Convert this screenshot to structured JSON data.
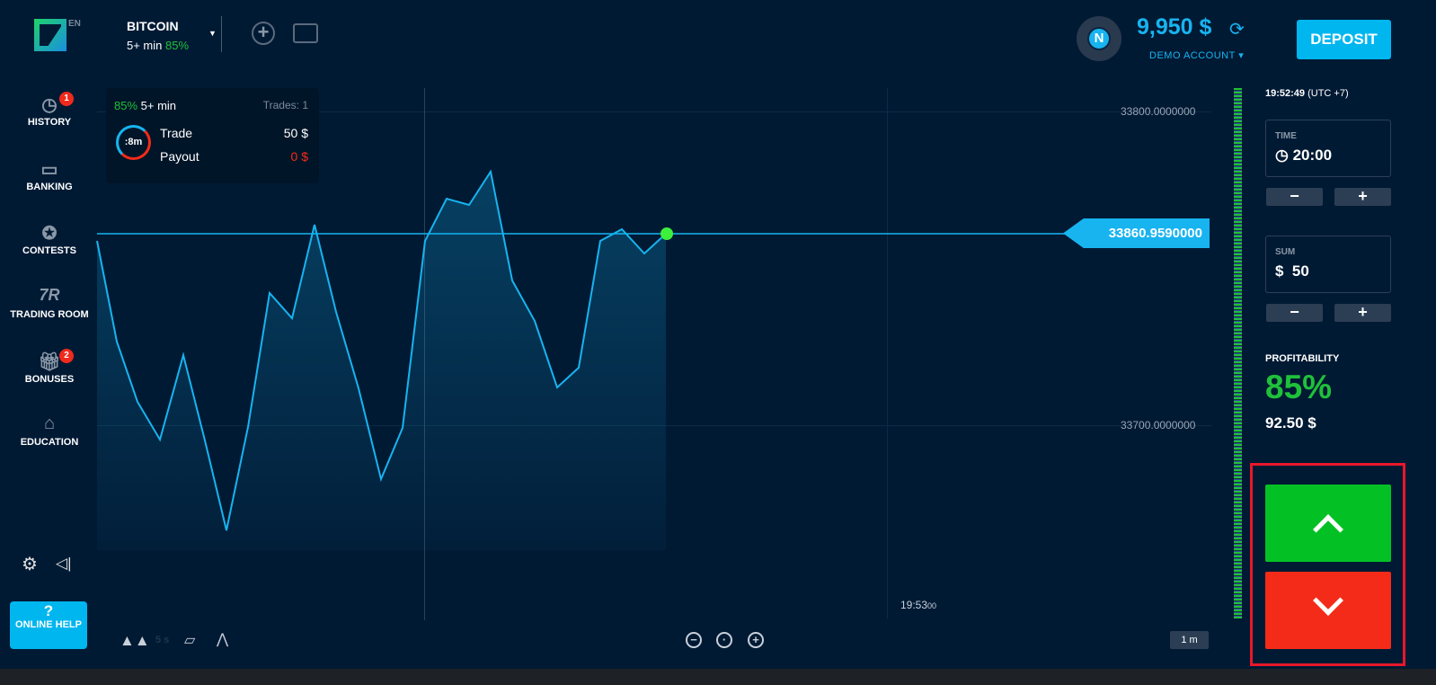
{
  "header": {
    "language": "EN",
    "asset": "BITCOIN",
    "expiry": "5+ min",
    "payout_pct": "85%",
    "add_icon": "plus-circle-icon",
    "calendar_icon": "calendar-icon",
    "avatar_letter": "N",
    "balance": "9,950 $",
    "account": "DEMO ACCOUNT",
    "deposit": "DEPOSIT"
  },
  "sidebar": {
    "items": [
      {
        "label": "HISTORY",
        "icon": "history-icon",
        "badge": "1"
      },
      {
        "label": "BANKING",
        "icon": "wallet-icon"
      },
      {
        "label": "CONTESTS",
        "icon": "star-icon"
      },
      {
        "label": "TRADING ROOM",
        "icon": "tr-icon",
        "glyph": "7R"
      },
      {
        "label": "BONUSES",
        "icon": "gift-icon",
        "badge": "2"
      },
      {
        "label": "EDUCATION",
        "icon": "graduation-cap-icon"
      }
    ],
    "help_mark": "?",
    "help_label": "ONLINE HELP"
  },
  "trade_panel": {
    "pct": "85%",
    "expiry": "5+ min",
    "trades": "Trades: 1",
    "timer": ":8m",
    "trade_label": "Trade",
    "trade_value": "50 $",
    "payout_label": "Payout",
    "payout_value": "0 $"
  },
  "chart": {
    "y_labels": [
      "33800.0000000",
      "33700.0000000"
    ],
    "current_price": "33860.9590000",
    "time_label": "19:53",
    "time_sec": "00",
    "interval": "5 s",
    "timeframe": "1 m",
    "colors": {
      "line": "#17b4f0",
      "marker": "#3cf03c"
    }
  },
  "right": {
    "clock": "19:52:49",
    "tz": "(UTC +7)",
    "time_label": "TIME",
    "time_value": "20:00",
    "sum_label": "SUM",
    "sum_currency": "$",
    "sum_value": "50",
    "minus": "−",
    "plus": "+",
    "profit_label": "PROFITABILITY",
    "profit_pct": "85%",
    "profit_amount": "92.50 $"
  }
}
